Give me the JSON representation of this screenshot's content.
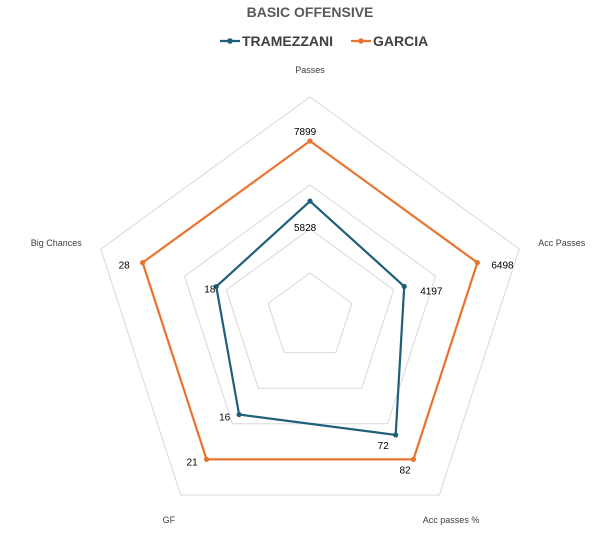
{
  "chart_data": {
    "type": "radar",
    "title": "BASIC OFFENSIVE",
    "categories": [
      "Passes",
      "Acc Passes",
      "Acc passes %",
      "GF",
      "Big Chances"
    ],
    "series": [
      {
        "name": "TRAMEZZANI",
        "color": "#1f5f7a",
        "values": [
          5828,
          4197,
          72,
          16,
          18
        ]
      },
      {
        "name": "GARCIA",
        "color": "#e8742f",
        "values": [
          7899,
          6498,
          82,
          21,
          28
        ]
      }
    ],
    "grid": true,
    "legend": "top"
  }
}
